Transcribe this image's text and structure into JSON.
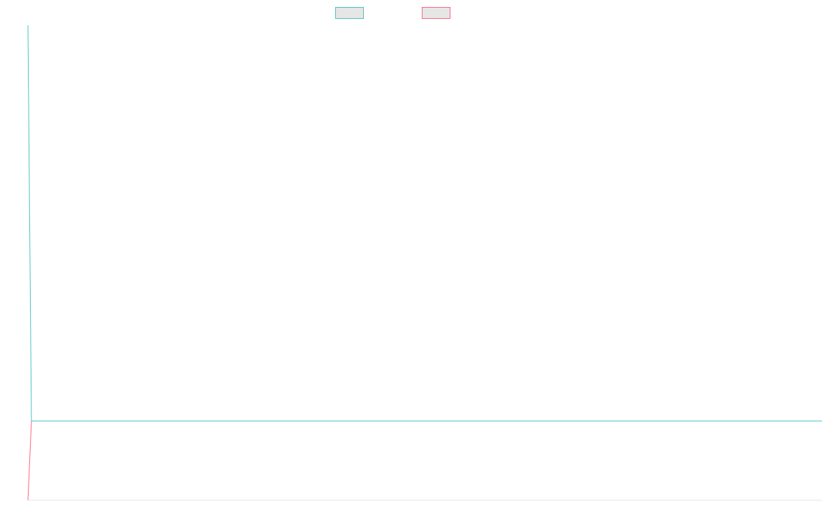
{
  "chart_data": {
    "type": "line",
    "title": "",
    "xlabel": "",
    "ylabel": "",
    "legend_position": "top-center",
    "grid": false,
    "x": [
      0,
      1,
      2
    ],
    "series": [
      {
        "name": "",
        "color": "#4bc0c0",
        "legend_fill": "#e6e6e6",
        "values": [
          6,
          1,
          1
        ]
      },
      {
        "name": "",
        "color": "#ff6384",
        "legend_fill": "#e6e6e6",
        "values": [
          0,
          1,
          null
        ]
      }
    ],
    "ylim": [
      0,
      6
    ],
    "xlim": [
      0,
      100
    ]
  }
}
